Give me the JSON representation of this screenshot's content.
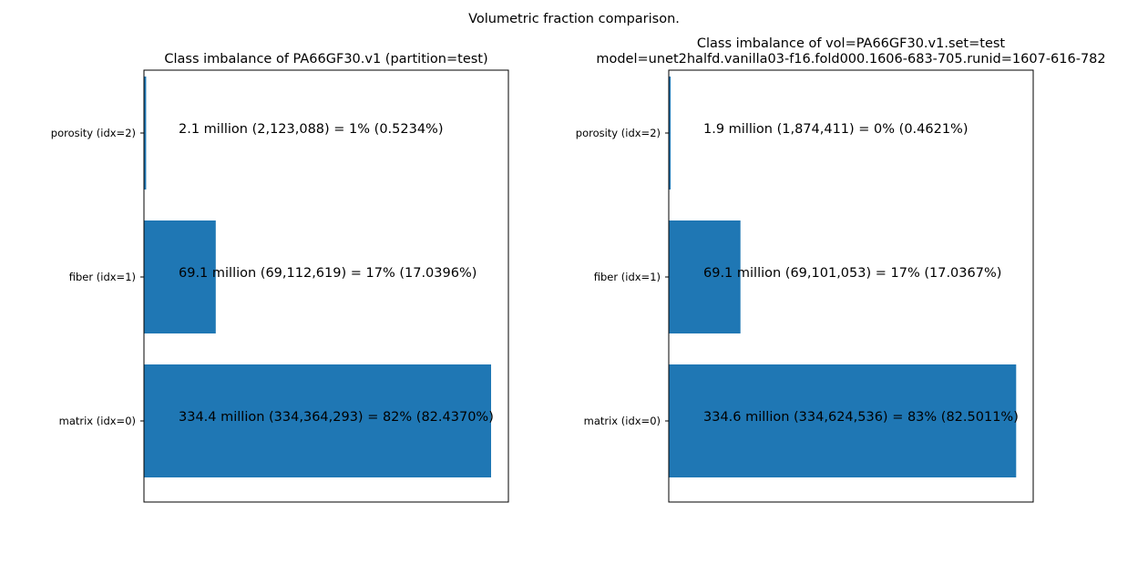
{
  "figure": {
    "suptitle": "Volumetric fraction comparison."
  },
  "colors": {
    "bar": "#1f77b4",
    "axes": "#000000",
    "background": "#ffffff"
  },
  "chart_data": [
    {
      "type": "bar",
      "orientation": "horizontal",
      "title": "Class imbalance of PA66GF30.v1 (partition=test)",
      "title_lines": [
        "Class imbalance of PA66GF30.v1 (partition=test)"
      ],
      "categories": [
        "matrix (idx=0)",
        "fiber (idx=1)",
        "porosity (idx=2)"
      ],
      "values": [
        334364293,
        69112619,
        2123088
      ],
      "fractions_percent": [
        82.437,
        17.0396,
        0.5234
      ],
      "bar_labels": [
        "334.4 million (334,364,293) = 82% (82.4370%)",
        "69.1 million (69,112,619) = 17% (17.0396%)",
        "2.1 million (2,123,088) = 1% (0.5234%)"
      ],
      "xlim": [
        0,
        351000000
      ],
      "x_ticks_visible": false,
      "grid": false
    },
    {
      "type": "bar",
      "orientation": "horizontal",
      "title": "Class imbalance of vol=PA66GF30.v1.set=test model=unet2halfd.vanilla03-f16.fold000.1606-683-705.runid=1607-616-782",
      "title_lines": [
        "Class imbalance of vol=PA66GF30.v1.set=test",
        "model=unet2halfd.vanilla03-f16.fold000.1606-683-705.runid=1607-616-782"
      ],
      "categories": [
        "matrix (idx=0)",
        "fiber (idx=1)",
        "porosity (idx=2)"
      ],
      "values": [
        334624536,
        69101053,
        1874411
      ],
      "fractions_percent": [
        82.5011,
        17.0367,
        0.4621
      ],
      "bar_labels": [
        "334.6 million (334,624,536) = 83% (82.5011%)",
        "69.1 million (69,101,053) = 17% (17.0367%)",
        "1.9 million (1,874,411) = 0% (0.4621%)"
      ],
      "xlim": [
        0,
        351000000
      ],
      "x_ticks_visible": false,
      "grid": false
    }
  ]
}
